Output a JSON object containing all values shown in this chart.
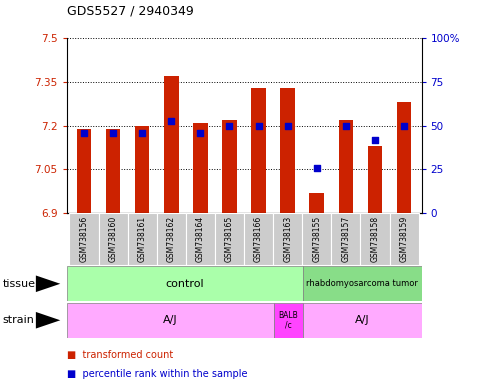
{
  "title": "GDS5527 / 2940349",
  "samples": [
    "GSM738156",
    "GSM738160",
    "GSM738161",
    "GSM738162",
    "GSM738164",
    "GSM738165",
    "GSM738166",
    "GSM738163",
    "GSM738155",
    "GSM738157",
    "GSM738158",
    "GSM738159"
  ],
  "red_values": [
    7.19,
    7.19,
    7.2,
    7.37,
    7.21,
    7.22,
    7.33,
    7.33,
    6.97,
    7.22,
    7.13,
    7.28
  ],
  "blue_values": [
    46,
    46,
    46,
    53,
    46,
    50,
    50,
    50,
    26,
    50,
    42,
    50
  ],
  "ymin": 6.9,
  "ymax": 7.5,
  "y_ticks": [
    6.9,
    7.05,
    7.2,
    7.35,
    7.5
  ],
  "y_tick_labels": [
    "6.9",
    "7.05",
    "7.2",
    "7.35",
    "7.5"
  ],
  "y2min": 0,
  "y2max": 100,
  "y2_ticks": [
    0,
    25,
    50,
    75,
    100
  ],
  "y2_tick_labels": [
    "0",
    "25",
    "50",
    "75",
    "100%"
  ],
  "red_color": "#cc2200",
  "blue_color": "#0000cc",
  "bar_width": 0.5,
  "control_samples": 8,
  "tumor_samples": 4,
  "aj1_samples": 7,
  "balb_samples": 1,
  "aj2_samples": 4,
  "tissue_row_label": "tissue",
  "strain_row_label": "strain",
  "legend_red": "transformed count",
  "legend_blue": "percentile rank within the sample",
  "grid_dotted_color": "#888888",
  "tick_color_left": "#cc2200",
  "tick_color_right": "#0000cc",
  "bg_color": "#ffffff",
  "xticklabel_bg": "#cccccc",
  "control_color": "#aaffaa",
  "tumor_color": "#88dd88",
  "strain_aj_color": "#ffaaff",
  "strain_balb_color": "#ff44ff"
}
